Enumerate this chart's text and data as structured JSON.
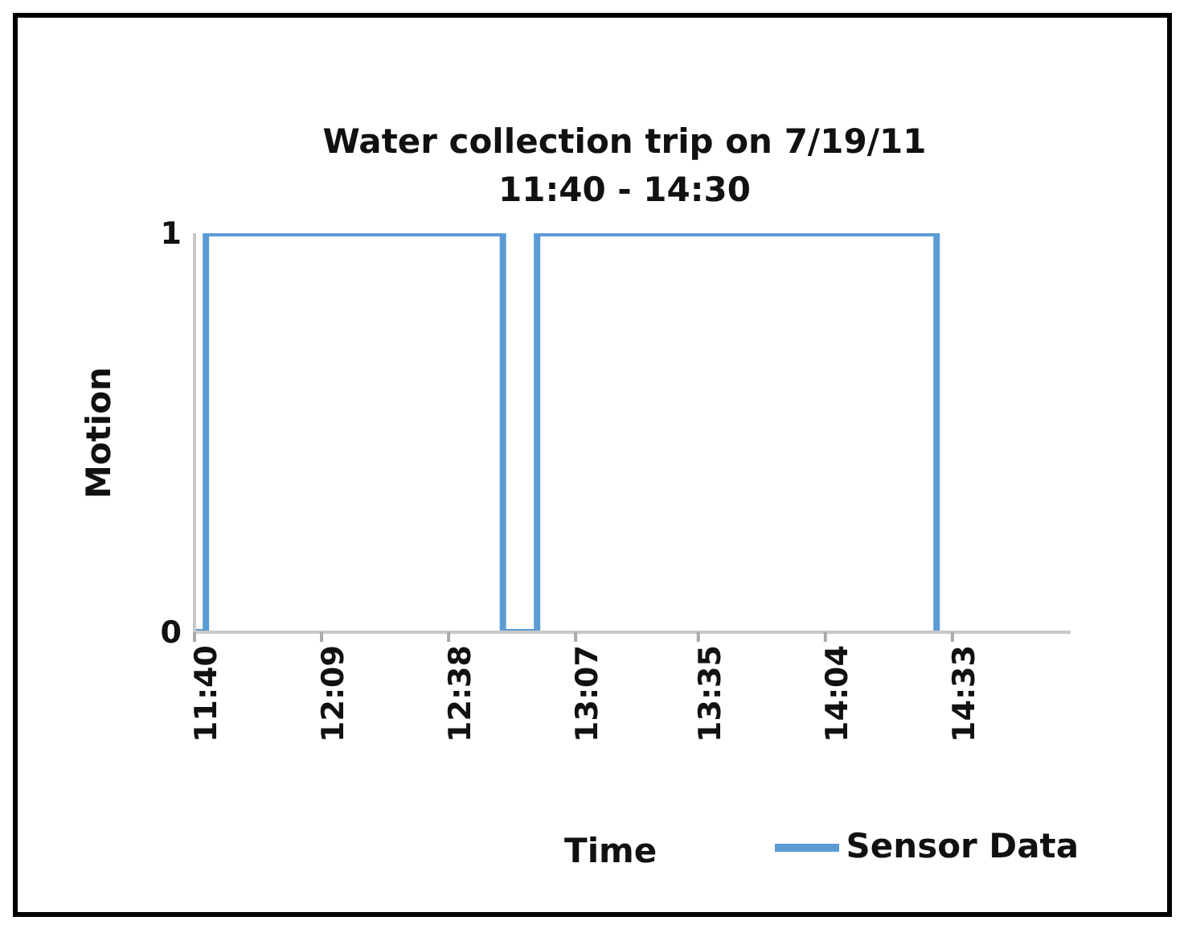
{
  "chart_data": {
    "type": "step",
    "title": "Water collection trip on 7/19/11",
    "subtitle": "11:40 - 14:30",
    "xlabel": "Time",
    "ylabel": "Motion",
    "x": [
      11.67,
      11.71,
      12.84,
      12.97,
      14.49
    ],
    "series": [
      {
        "name": "Sensor Data",
        "color": "#5b9bd5",
        "values": [
          0,
          1,
          0,
          1,
          0
        ]
      }
    ],
    "xlim": [
      11.6667,
      15.0
    ],
    "xticks": [
      {
        "value": 11.6667,
        "label": "11:40"
      },
      {
        "value": 12.15,
        "label": "12:09"
      },
      {
        "value": 12.6333,
        "label": "12:38"
      },
      {
        "value": 13.1167,
        "label": "13:07"
      },
      {
        "value": 13.5833,
        "label": "13:35"
      },
      {
        "value": 14.0667,
        "label": "14:04"
      },
      {
        "value": 14.55,
        "label": "14:33"
      }
    ],
    "ylim": [
      0,
      1
    ],
    "yticks": [
      0,
      1
    ],
    "legend": "bottom right",
    "marker": "none",
    "line_style": "solid"
  }
}
